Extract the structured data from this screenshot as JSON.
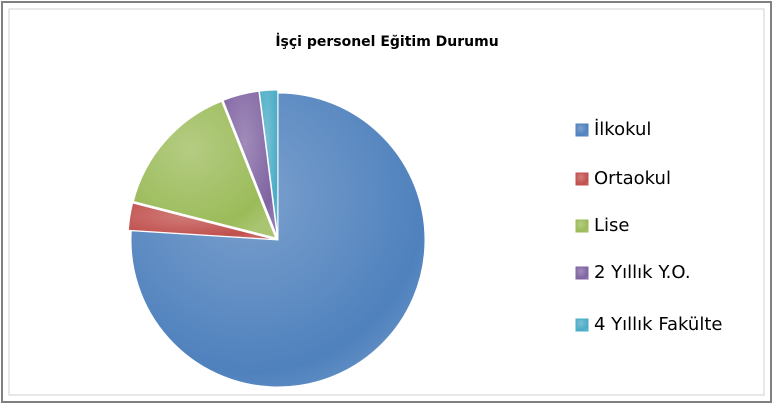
{
  "chart_data": {
    "type": "pie",
    "title": "İşçi personel Eğitim Durumu",
    "categories": [
      "İlkokul",
      "Ortaokul",
      "Lise",
      "2 Yıllık Y.O.",
      "4 Yıllık Fakülte"
    ],
    "values": [
      76,
      3,
      15,
      4,
      2
    ],
    "colors": [
      "#4f81bd",
      "#c0504d",
      "#9bbb59",
      "#8064a2",
      "#4bacc6"
    ],
    "legend": "right"
  }
}
